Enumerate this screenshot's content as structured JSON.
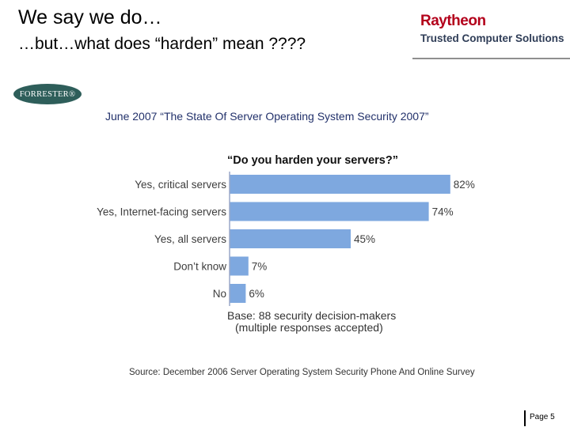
{
  "header": {
    "title": "We say we do…",
    "subtitle": "…but…what does “harden” mean ????"
  },
  "brand": {
    "name": "Raytheon",
    "tagline": "Trusted Computer Solutions",
    "color": "#b3001b"
  },
  "forrester_logo": {
    "text": "FORRESTER®"
  },
  "report_title": "June 2007 “The State Of Server Operating System Security 2007”",
  "chart_data": {
    "type": "bar",
    "orientation": "horizontal",
    "title": "“Do you harden your servers?”",
    "categories": [
      "Yes, critical servers",
      "Yes, Internet-facing servers",
      "Yes, all servers",
      "Don’t know",
      "No"
    ],
    "values": [
      82,
      74,
      45,
      7,
      6
    ],
    "value_labels": [
      "82%",
      "74%",
      "45%",
      "7%",
      "6%"
    ],
    "xlim": [
      0,
      100
    ],
    "bar_color": "#7ea8df",
    "grid": false
  },
  "base_note": {
    "line1": "Base: 88 security decision-makers",
    "line2": "(multiple responses accepted)"
  },
  "source": "Source: December 2006 Server Operating System Security Phone And Online Survey",
  "footer": {
    "page": "Page 5"
  }
}
